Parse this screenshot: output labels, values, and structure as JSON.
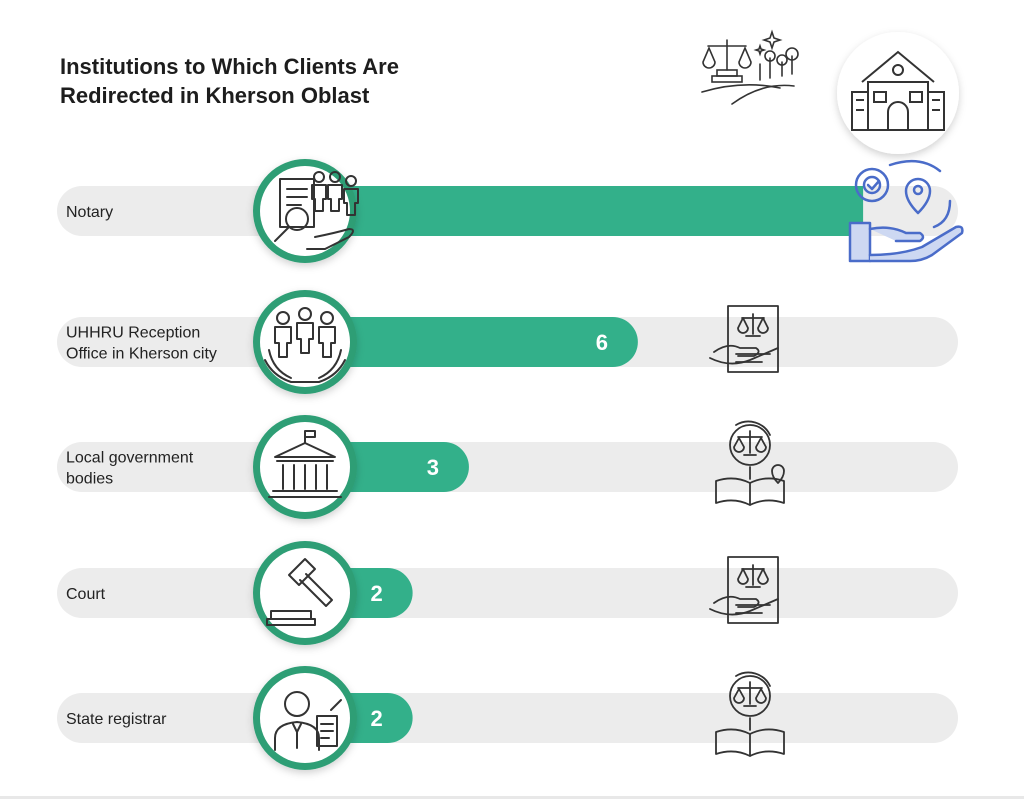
{
  "title_lines": [
    "Institutions to Which Clients Are",
    "Redirected in Kherson Oblast"
  ],
  "colors": {
    "bar": "#33b08a",
    "track": "#ececec",
    "ring": "#2e9e75",
    "icon": "#333333",
    "accent_icon": "#4a6cc9"
  },
  "icons": {
    "top": [
      "scales-of-justice-landscape-icon",
      "courthouse-building-icon"
    ],
    "rows": [
      "notary-documents-people-icon",
      "people-in-hand-icon",
      "government-building-icon",
      "gavel-icon",
      "registrar-person-icon"
    ],
    "right": [
      "service-location-hand-icon",
      "legal-document-hand-icon",
      "justice-globe-book-icon",
      "legal-document-hand-icon",
      "justice-globe-book-icon"
    ]
  },
  "chart_data": {
    "type": "bar",
    "orientation": "horizontal",
    "categories": [
      "Notary",
      "UHHRU Reception Office in Kherson city",
      "Local government bodies",
      "Court",
      "State registrar"
    ],
    "category_lines": [
      [
        "Notary"
      ],
      [
        "UHHRU Reception",
        "Office in Kherson city"
      ],
      [
        "Local government",
        "bodies"
      ],
      [
        "Court"
      ],
      [
        "State registrar"
      ]
    ],
    "values": [
      10,
      6,
      3,
      2,
      2
    ],
    "value_labels": [
      "",
      "6",
      "3",
      "2",
      "2"
    ],
    "xlim": [
      0,
      10.3
    ]
  }
}
